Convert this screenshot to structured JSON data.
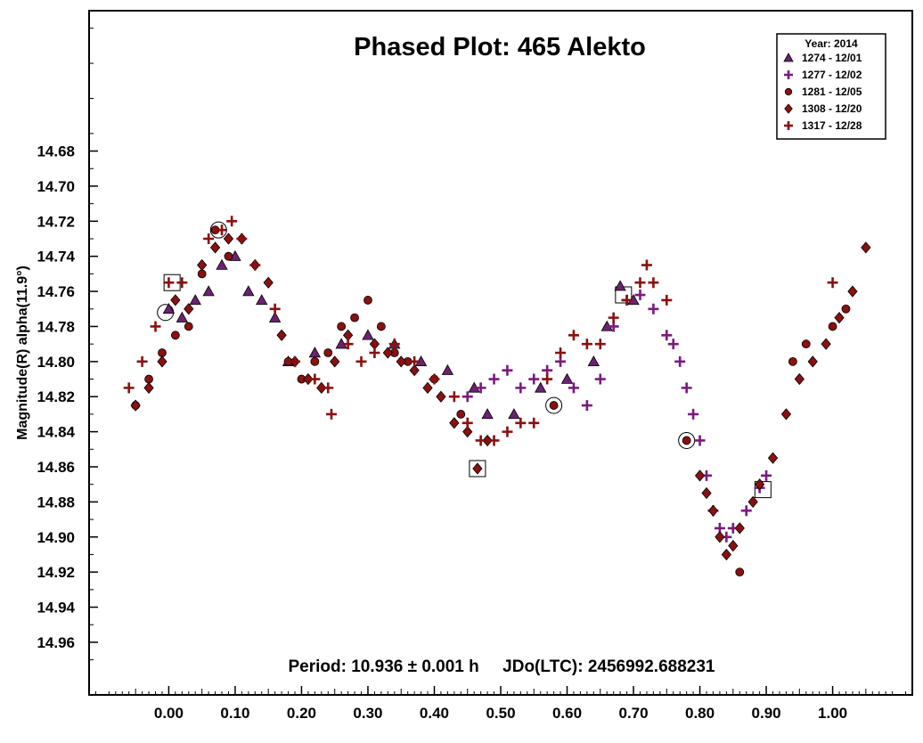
{
  "chart_data": {
    "type": "scatter",
    "title": "Phased Plot: 465 Alekto",
    "xlabel": "",
    "ylabel": "Magnitude(R) alpha(11.9°)",
    "xlim": [
      -0.12,
      1.12
    ],
    "ylim": [
      14.6,
      14.99
    ],
    "y_inverted": true,
    "x_ticks": [
      "0.00",
      "0.10",
      "0.20",
      "0.30",
      "0.40",
      "0.50",
      "0.60",
      "0.70",
      "0.80",
      "0.90",
      "1.00"
    ],
    "y_ticks": [
      "14.68",
      "14.70",
      "14.72",
      "14.74",
      "14.76",
      "14.78",
      "14.80",
      "14.82",
      "14.84",
      "14.86",
      "14.88",
      "14.90",
      "14.92",
      "14.94",
      "14.96"
    ],
    "annotation": "Period: 10.936 ± 0.001 h     JDo(LTC): 2456992.688231",
    "legend": {
      "title": "Year: 2014",
      "placement": "top-right"
    },
    "series": [
      {
        "name": "1274 - 12/01",
        "marker": "triangle",
        "color": "#6b2270",
        "points": [
          [
            0.0,
            14.77
          ],
          [
            0.02,
            14.775
          ],
          [
            0.04,
            14.765
          ],
          [
            0.06,
            14.76
          ],
          [
            0.08,
            14.745
          ],
          [
            0.1,
            14.74
          ],
          [
            0.12,
            14.76
          ],
          [
            0.14,
            14.765
          ],
          [
            0.16,
            14.775
          ],
          [
            0.18,
            14.8
          ],
          [
            0.22,
            14.795
          ],
          [
            0.26,
            14.79
          ],
          [
            0.3,
            14.785
          ],
          [
            0.34,
            14.79
          ],
          [
            0.38,
            14.8
          ],
          [
            0.42,
            14.805
          ],
          [
            0.46,
            14.815
          ],
          [
            0.48,
            14.83
          ],
          [
            0.52,
            14.83
          ],
          [
            0.56,
            14.815
          ],
          [
            0.6,
            14.81
          ],
          [
            0.64,
            14.8
          ],
          [
            0.66,
            14.78
          ],
          [
            0.68,
            14.757
          ],
          [
            0.7,
            14.765
          ]
        ]
      },
      {
        "name": "1277 - 12/02",
        "marker": "plus",
        "color": "#7a1a80",
        "points": [
          [
            0.45,
            14.82
          ],
          [
            0.47,
            14.815
          ],
          [
            0.49,
            14.81
          ],
          [
            0.51,
            14.805
          ],
          [
            0.53,
            14.815
          ],
          [
            0.55,
            14.81
          ],
          [
            0.57,
            14.805
          ],
          [
            0.59,
            14.8
          ],
          [
            0.61,
            14.815
          ],
          [
            0.63,
            14.825
          ],
          [
            0.65,
            14.81
          ],
          [
            0.67,
            14.78
          ],
          [
            0.69,
            14.765
          ],
          [
            0.71,
            14.762
          ],
          [
            0.73,
            14.77
          ],
          [
            0.75,
            14.785
          ],
          [
            0.76,
            14.79
          ],
          [
            0.77,
            14.8
          ],
          [
            0.78,
            14.815
          ],
          [
            0.79,
            14.83
          ],
          [
            0.8,
            14.845
          ],
          [
            0.81,
            14.865
          ],
          [
            0.82,
            14.885
          ],
          [
            0.83,
            14.895
          ],
          [
            0.84,
            14.9
          ],
          [
            0.85,
            14.895
          ],
          [
            0.87,
            14.885
          ],
          [
            0.89,
            14.872
          ],
          [
            0.9,
            14.865
          ]
        ]
      },
      {
        "name": "1281 - 12/05",
        "marker": "circle",
        "color": "#8b1010",
        "points": [
          [
            -0.05,
            14.825
          ],
          [
            -0.03,
            14.81
          ],
          [
            -0.01,
            14.795
          ],
          [
            0.01,
            14.785
          ],
          [
            0.03,
            14.78
          ],
          [
            0.05,
            14.75
          ],
          [
            0.07,
            14.725
          ],
          [
            0.09,
            14.74
          ],
          [
            0.18,
            14.8
          ],
          [
            0.2,
            14.81
          ],
          [
            0.22,
            14.8
          ],
          [
            0.24,
            14.795
          ],
          [
            0.26,
            14.78
          ],
          [
            0.28,
            14.775
          ],
          [
            0.3,
            14.765
          ],
          [
            0.32,
            14.78
          ],
          [
            0.34,
            14.795
          ],
          [
            0.36,
            14.8
          ],
          [
            0.4,
            14.81
          ],
          [
            0.44,
            14.83
          ],
          [
            0.58,
            14.825
          ],
          [
            0.78,
            14.845
          ],
          [
            0.86,
            14.92
          ],
          [
            0.94,
            14.8
          ],
          [
            0.96,
            14.79
          ],
          [
            1.0,
            14.78
          ],
          [
            1.02,
            14.77
          ]
        ]
      },
      {
        "name": "1308 - 12/20",
        "marker": "diamond",
        "color": "#8b1010",
        "points": [
          [
            -0.05,
            14.825
          ],
          [
            -0.03,
            14.815
          ],
          [
            -0.01,
            14.8
          ],
          [
            0.01,
            14.765
          ],
          [
            0.03,
            14.77
          ],
          [
            0.05,
            14.745
          ],
          [
            0.07,
            14.735
          ],
          [
            0.09,
            14.73
          ],
          [
            0.11,
            14.73
          ],
          [
            0.13,
            14.745
          ],
          [
            0.15,
            14.755
          ],
          [
            0.17,
            14.785
          ],
          [
            0.19,
            14.8
          ],
          [
            0.21,
            14.81
          ],
          [
            0.23,
            14.815
          ],
          [
            0.25,
            14.8
          ],
          [
            0.27,
            14.785
          ],
          [
            0.31,
            14.79
          ],
          [
            0.33,
            14.795
          ],
          [
            0.35,
            14.8
          ],
          [
            0.37,
            14.805
          ],
          [
            0.39,
            14.815
          ],
          [
            0.41,
            14.82
          ],
          [
            0.43,
            14.835
          ],
          [
            0.45,
            14.84
          ],
          [
            0.465,
            14.861
          ],
          [
            0.48,
            14.845
          ],
          [
            0.8,
            14.865
          ],
          [
            0.81,
            14.875
          ],
          [
            0.82,
            14.885
          ],
          [
            0.83,
            14.9
          ],
          [
            0.84,
            14.91
          ],
          [
            0.85,
            14.905
          ],
          [
            0.86,
            14.895
          ],
          [
            0.88,
            14.88
          ],
          [
            0.89,
            14.87
          ],
          [
            0.91,
            14.855
          ],
          [
            0.93,
            14.83
          ],
          [
            0.95,
            14.81
          ],
          [
            0.97,
            14.8
          ],
          [
            0.99,
            14.79
          ],
          [
            1.01,
            14.775
          ],
          [
            1.03,
            14.76
          ],
          [
            1.05,
            14.735
          ]
        ]
      },
      {
        "name": "1317 - 12/28",
        "marker": "plus",
        "color": "#8b1010",
        "points": [
          [
            -0.06,
            14.815
          ],
          [
            -0.04,
            14.8
          ],
          [
            -0.02,
            14.78
          ],
          [
            0.0,
            14.755
          ],
          [
            0.02,
            14.755
          ],
          [
            0.06,
            14.73
          ],
          [
            0.08,
            14.725
          ],
          [
            0.095,
            14.72
          ],
          [
            0.11,
            14.73
          ],
          [
            0.13,
            14.745
          ],
          [
            0.16,
            14.77
          ],
          [
            0.19,
            14.8
          ],
          [
            0.22,
            14.81
          ],
          [
            0.24,
            14.815
          ],
          [
            0.245,
            14.83
          ],
          [
            0.27,
            14.79
          ],
          [
            0.29,
            14.8
          ],
          [
            0.31,
            14.795
          ],
          [
            0.34,
            14.79
          ],
          [
            0.37,
            14.8
          ],
          [
            0.4,
            14.81
          ],
          [
            0.43,
            14.82
          ],
          [
            0.45,
            14.835
          ],
          [
            0.47,
            14.845
          ],
          [
            0.49,
            14.845
          ],
          [
            0.51,
            14.84
          ],
          [
            0.53,
            14.835
          ],
          [
            0.55,
            14.835
          ],
          [
            0.57,
            14.81
          ],
          [
            0.59,
            14.795
          ],
          [
            0.61,
            14.785
          ],
          [
            0.63,
            14.79
          ],
          [
            0.65,
            14.79
          ],
          [
            0.67,
            14.775
          ],
          [
            0.69,
            14.765
          ],
          [
            0.71,
            14.755
          ],
          [
            0.72,
            14.745
          ],
          [
            0.73,
            14.755
          ],
          [
            0.75,
            14.765
          ],
          [
            1.0,
            14.755
          ]
        ]
      }
    ],
    "highlighted": [
      {
        "shape": "circle",
        "x": 0.075,
        "y": 14.725
      },
      {
        "shape": "circle",
        "x": -0.005,
        "y": 14.772
      },
      {
        "shape": "square",
        "x": 0.005,
        "y": 14.755
      },
      {
        "shape": "square",
        "x": 0.465,
        "y": 14.861
      },
      {
        "shape": "circle",
        "x": 0.58,
        "y": 14.825
      },
      {
        "shape": "square",
        "x": 0.685,
        "y": 14.762
      },
      {
        "shape": "circle",
        "x": 0.78,
        "y": 14.845
      },
      {
        "shape": "square",
        "x": 0.895,
        "y": 14.873
      }
    ]
  }
}
